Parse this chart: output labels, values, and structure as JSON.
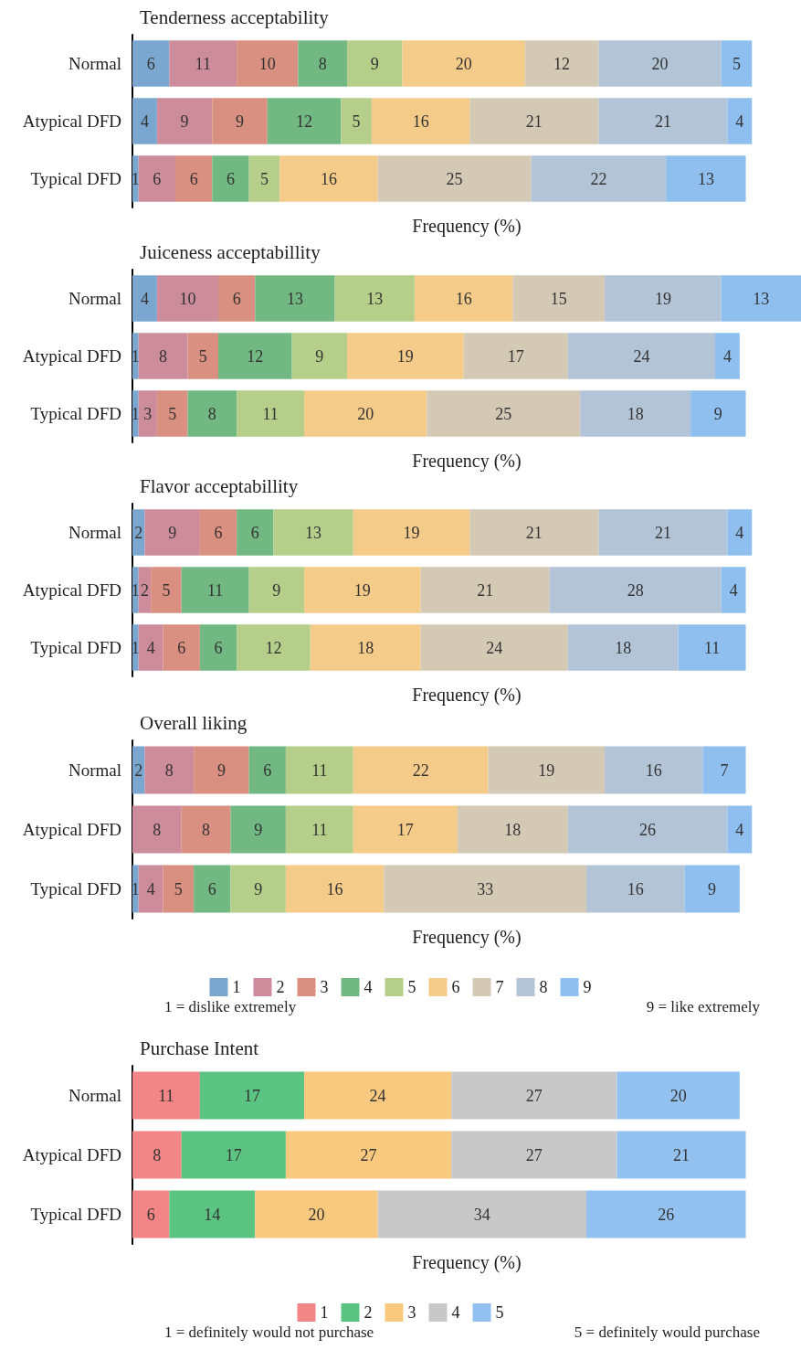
{
  "chart_data": [
    {
      "type": "bar",
      "orientation": "horizontal",
      "stacked": true,
      "data_labels": true,
      "title": "Tenderness acceptability",
      "xlabel": "Frequency (%)",
      "categories": [
        "Normal",
        "Atypical DFD",
        "Typical DFD"
      ],
      "series": [
        {
          "color": "#7aa6cf",
          "values": [
            6,
            4,
            1
          ]
        },
        {
          "color": "#cc8c9c",
          "values": [
            11,
            9,
            6
          ]
        },
        {
          "color": "#d99080",
          "values": [
            10,
            9,
            6
          ]
        },
        {
          "color": "#72b883",
          "values": [
            8,
            12,
            6
          ]
        },
        {
          "color": "#b5cf8a",
          "values": [
            9,
            5,
            5
          ]
        },
        {
          "color": "#f5cb8a",
          "values": [
            20,
            16,
            16
          ]
        },
        {
          "color": "#d4c9b5",
          "values": [
            12,
            21,
            25
          ]
        },
        {
          "color": "#b3c4d6",
          "values": [
            20,
            21,
            22
          ]
        },
        {
          "color": "#8fbfef",
          "values": [
            5,
            4,
            13
          ]
        }
      ]
    },
    {
      "type": "bar",
      "orientation": "horizontal",
      "stacked": true,
      "data_labels": true,
      "title": "Juiceness acceptabillity",
      "xlabel": "Frequency (%)",
      "categories": [
        "Normal",
        "Atypical DFD",
        "Typical DFD"
      ],
      "series": [
        {
          "color": "#7aa6cf",
          "values": [
            4,
            1,
            1
          ]
        },
        {
          "color": "#cc8c9c",
          "values": [
            10,
            8,
            3
          ]
        },
        {
          "color": "#d99080",
          "values": [
            6,
            5,
            5
          ]
        },
        {
          "color": "#72b883",
          "values": [
            13,
            12,
            8
          ]
        },
        {
          "color": "#b5cf8a",
          "values": [
            13,
            9,
            11
          ]
        },
        {
          "color": "#f5cb8a",
          "values": [
            16,
            19,
            20
          ]
        },
        {
          "color": "#d4c9b5",
          "values": [
            15,
            17,
            25
          ]
        },
        {
          "color": "#b3c4d6",
          "values": [
            19,
            24,
            18
          ]
        },
        {
          "color": "#8fbfef",
          "values": [
            13,
            4,
            9
          ]
        }
      ]
    },
    {
      "type": "bar",
      "orientation": "horizontal",
      "stacked": true,
      "data_labels": true,
      "title": "Flavor acceptabillity",
      "xlabel": "Frequency (%)",
      "categories": [
        "Normal",
        "Atypical DFD",
        "Typical DFD"
      ],
      "series": [
        {
          "color": "#7aa6cf",
          "values": [
            2,
            1,
            1
          ]
        },
        {
          "color": "#cc8c9c",
          "values": [
            9,
            2,
            4
          ]
        },
        {
          "color": "#d99080",
          "values": [
            6,
            5,
            6
          ]
        },
        {
          "color": "#72b883",
          "values": [
            6,
            11,
            6
          ]
        },
        {
          "color": "#b5cf8a",
          "values": [
            13,
            9,
            12
          ]
        },
        {
          "color": "#f5cb8a",
          "values": [
            19,
            19,
            18
          ]
        },
        {
          "color": "#d4c9b5",
          "values": [
            21,
            21,
            24
          ]
        },
        {
          "color": "#b3c4d6",
          "values": [
            21,
            28,
            18
          ]
        },
        {
          "color": "#8fbfef",
          "values": [
            4,
            4,
            11
          ]
        }
      ]
    },
    {
      "type": "bar",
      "orientation": "horizontal",
      "stacked": true,
      "data_labels": true,
      "title": "Overall liking",
      "xlabel": "Frequency (%)",
      "legend": "bottom",
      "annotations": [
        "1 = dislike extremely",
        "9 = like extremely"
      ],
      "categories": [
        "Normal",
        "Atypical DFD",
        "Typical DFD"
      ],
      "series": [
        {
          "name": "1",
          "color": "#7aa6cf",
          "values": [
            2,
            null,
            1
          ]
        },
        {
          "name": "2",
          "color": "#cc8c9c",
          "values": [
            8,
            8,
            4
          ]
        },
        {
          "name": "3",
          "color": "#d99080",
          "values": [
            9,
            8,
            5
          ]
        },
        {
          "name": "4",
          "color": "#72b883",
          "values": [
            6,
            9,
            6
          ]
        },
        {
          "name": "5",
          "color": "#b5cf8a",
          "values": [
            11,
            11,
            9
          ]
        },
        {
          "name": "6",
          "color": "#f5cb8a",
          "values": [
            22,
            17,
            16
          ]
        },
        {
          "name": "7",
          "color": "#d4c9b5",
          "values": [
            19,
            18,
            33
          ]
        },
        {
          "name": "8",
          "color": "#b3c4d6",
          "values": [
            16,
            26,
            16
          ]
        },
        {
          "name": "9",
          "color": "#8fbfef",
          "values": [
            7,
            4,
            9
          ]
        }
      ]
    },
    {
      "type": "bar",
      "orientation": "horizontal",
      "stacked": true,
      "data_labels": true,
      "title": "Purchase Intent",
      "xlabel": "Frequency (%)",
      "legend": "bottom",
      "annotations": [
        "1 = definitely would not purchase",
        "5 = definitely would purchase"
      ],
      "categories": [
        "Normal",
        "Atypical DFD",
        "Typical DFD"
      ],
      "series": [
        {
          "name": "1",
          "color": "#f28585",
          "values": [
            11,
            8,
            6
          ]
        },
        {
          "name": "2",
          "color": "#5cc483",
          "values": [
            17,
            17,
            14
          ]
        },
        {
          "name": "3",
          "color": "#f8c97f",
          "values": [
            24,
            27,
            20
          ]
        },
        {
          "name": "4",
          "color": "#c8c8c8",
          "values": [
            27,
            27,
            34
          ]
        },
        {
          "name": "5",
          "color": "#93c2f0",
          "values": [
            20,
            21,
            26
          ]
        }
      ]
    }
  ]
}
